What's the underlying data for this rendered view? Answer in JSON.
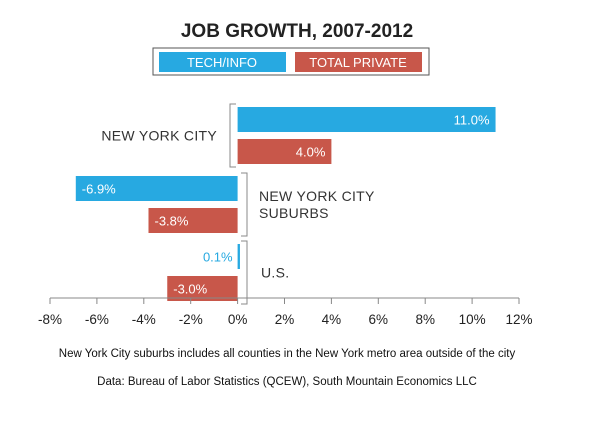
{
  "colors": {
    "tech_info": "#27a9e1",
    "total_private": "#c8574a",
    "text": "#333333",
    "axis": "#888888",
    "legend_border": "#555555"
  },
  "notes": {
    "suburbs_note": "New York City suburbs includes all counties in the New York metro area outside of the city",
    "source": "Data: Bureau of Labor Statistics (QCEW), South Mountain Economics LLC"
  },
  "chart_data": {
    "type": "bar",
    "orientation": "horizontal",
    "title": "JOB GROWTH, 2007-2012",
    "categories": [
      "NEW YORK CITY",
      "NEW YORK CITY SUBURBS",
      "U.S."
    ],
    "category_lines": [
      [
        "NEW YORK CITY"
      ],
      [
        "NEW YORK CITY",
        "SUBURBS"
      ],
      [
        "U.S."
      ]
    ],
    "series": [
      {
        "name": "TECH/INFO",
        "values": [
          11.0,
          -6.9,
          0.1
        ],
        "labels": [
          "11.0%",
          "-6.9%",
          "0.1%"
        ]
      },
      {
        "name": "TOTAL PRIVATE",
        "values": [
          4.0,
          -3.8,
          -3.0
        ],
        "labels": [
          "4.0%",
          "-3.8%",
          "-3.0%"
        ]
      }
    ],
    "xlim": [
      -8,
      12
    ],
    "x_ticks": [
      -8,
      -6,
      -4,
      -2,
      0,
      2,
      4,
      6,
      8,
      10,
      12
    ],
    "x_tick_labels": [
      "-8%",
      "-6%",
      "-4%",
      "-2%",
      "0%",
      "2%",
      "4%",
      "6%",
      "8%",
      "10%",
      "12%"
    ],
    "legend_position": "top-center",
    "grid": false
  }
}
